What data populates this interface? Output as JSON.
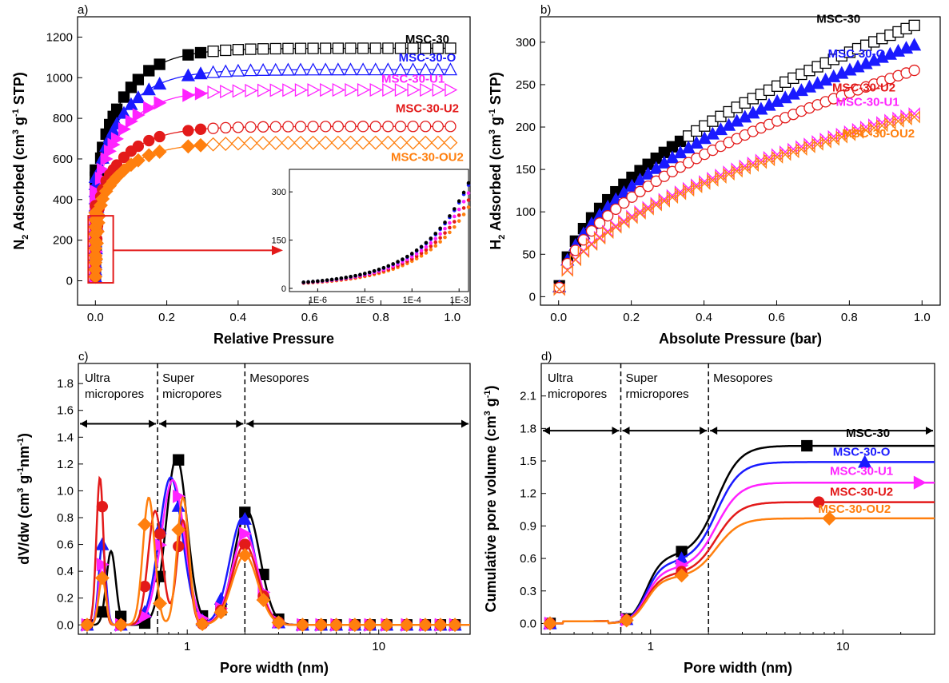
{
  "colors": {
    "MSC-30": "#000000",
    "MSC-30-O": "#1a1aff",
    "MSC-30-U1": "#ff22ff",
    "MSC-30-U2": "#e31a1a",
    "MSC-30-OU2": "#ff7f0e"
  },
  "chart_data": [
    {
      "id": "a",
      "panel_label": "a)",
      "type": "scatter",
      "xlabel": "Relative Pressure",
      "ylabel": "N2 Adsorbed (cm3 g-1 STP)",
      "ylabel_parts": [
        "N",
        "2",
        " Adsorbed (cm",
        "3",
        " g",
        "-1",
        " STP)"
      ],
      "xlim": [
        -0.05,
        1.05
      ],
      "ylim": [
        -120,
        1300
      ],
      "xticks": [
        "0.0",
        "0.2",
        "0.4",
        "0.6",
        "0.8",
        "1.0"
      ],
      "yticks": [
        "0",
        "200",
        "400",
        "600",
        "800",
        "1000",
        "1200"
      ],
      "series": [
        {
          "name": "MSC-30",
          "label_pos": [
            0.93,
            1170
          ],
          "plateau": 1145,
          "rise": 560
        },
        {
          "name": "MSC-30-O",
          "label_pos": [
            0.93,
            1080
          ],
          "plateau": 1040,
          "rise": 520
        },
        {
          "name": "MSC-30-U1",
          "label_pos": [
            0.89,
            975
          ],
          "plateau": 940,
          "rise": 470
        },
        {
          "name": "MSC-30-U2",
          "label_pos": [
            0.93,
            830
          ],
          "plateau": 760,
          "rise": 390
        },
        {
          "name": "MSC-30-OU2",
          "label_pos": [
            0.93,
            590
          ],
          "plateau": 680,
          "rise": 350
        }
      ],
      "inset": {
        "xticks": [
          "1E-6",
          "1E-5",
          "1E-4",
          "1E-3"
        ],
        "yticks": [
          "0",
          "150",
          "300"
        ],
        "xlim_log10": [
          -6.6,
          -2.8
        ],
        "ylim": [
          -10,
          370
        ]
      }
    },
    {
      "id": "b",
      "panel_label": "b)",
      "type": "scatter",
      "xlabel": "Absolute Pressure (bar)",
      "ylabel": "H2 Adsorbed (cm3 g-1 STP)",
      "ylabel_parts": [
        "H",
        "2",
        " Adsorbed (cm",
        "3",
        " g",
        "-1",
        " STP)"
      ],
      "xlim": [
        -0.05,
        1.05
      ],
      "ylim": [
        -10,
        330
      ],
      "xticks": [
        "0.0",
        "0.2",
        "0.4",
        "0.6",
        "0.8",
        "1.0"
      ],
      "yticks": [
        "0",
        "50",
        "100",
        "150",
        "200",
        "250",
        "300"
      ],
      "series": [
        {
          "name": "MSC-30",
          "end": 320,
          "label_pos": [
            0.77,
            323
          ]
        },
        {
          "name": "MSC-30-O",
          "end": 297,
          "label_pos": [
            0.82,
            282
          ]
        },
        {
          "name": "MSC-30-U2",
          "end": 267,
          "label_pos": [
            0.84,
            242
          ]
        },
        {
          "name": "MSC-30-U1",
          "end": 216,
          "label_pos": [
            0.85,
            225
          ]
        },
        {
          "name": "MSC-30-OU2",
          "end": 212,
          "label_pos": [
            0.88,
            188
          ]
        }
      ]
    },
    {
      "id": "c",
      "panel_label": "c)",
      "type": "line",
      "xscale": "log",
      "xlabel": "Pore width (nm)",
      "ylabel": "dV/dw (cm3 g-1nm-1)",
      "ylabel_parts": [
        "dV/dw (cm",
        "3",
        " g",
        "-1",
        "nm",
        "-1",
        ")"
      ],
      "xlim": [
        0.27,
        30
      ],
      "ylim": [
        -0.07,
        1.95
      ],
      "xticks": [
        {
          "v": 1,
          "label": "1"
        },
        {
          "v": 10,
          "label": "10"
        }
      ],
      "yticks": [
        "0.0",
        "0.2",
        "0.4",
        "0.6",
        "0.8",
        "1.0",
        "1.2",
        "1.4",
        "1.6",
        "1.8"
      ],
      "regions": [
        {
          "label_lines": [
            "Ultra",
            "micropores"
          ],
          "from": 0.27,
          "to": 0.7
        },
        {
          "label_lines": [
            "Super",
            "micropores"
          ],
          "from": 0.7,
          "to": 2.0
        },
        {
          "label_lines": [
            "Mesopores"
          ],
          "from": 2.0,
          "to": 30
        }
      ],
      "arrow_y": 1.5,
      "dividers": [
        0.7,
        2.0
      ],
      "series": [
        {
          "name": "MSC-30",
          "peaks": [
            [
              0.4,
              0.55,
              0.08
            ],
            [
              0.88,
              1.25,
              0.18
            ],
            [
              2.05,
              0.85,
              0.22
            ]
          ]
        },
        {
          "name": "MSC-30-O",
          "peaks": [
            [
              0.36,
              0.6,
              0.06
            ],
            [
              0.82,
              1.1,
              0.2
            ],
            [
              1.95,
              0.8,
              0.22
            ]
          ]
        },
        {
          "name": "MSC-30-U1",
          "peaks": [
            [
              0.36,
              0.45,
              0.06
            ],
            [
              0.84,
              1.08,
              0.2
            ],
            [
              2.0,
              0.68,
              0.22
            ]
          ]
        },
        {
          "name": "MSC-30-U2",
          "peaks": [
            [
              0.35,
              1.1,
              0.06
            ],
            [
              0.68,
              0.85,
              0.12
            ],
            [
              0.95,
              0.78,
              0.1
            ],
            [
              2.0,
              0.6,
              0.22
            ]
          ]
        },
        {
          "name": "MSC-30-OU2",
          "peaks": [
            [
              0.36,
              0.35,
              0.06
            ],
            [
              0.63,
              0.95,
              0.1
            ],
            [
              0.95,
              0.95,
              0.1
            ],
            [
              2.0,
              0.52,
              0.22
            ]
          ]
        }
      ]
    },
    {
      "id": "d",
      "panel_label": "d)",
      "type": "line",
      "xscale": "log",
      "xlabel": "Pore width (nm)",
      "ylabel": "Cumulative pore volume (cm3 g-1)",
      "ylabel_parts": [
        "Cumulative pore volume (cm",
        "3",
        " g",
        "-1",
        ")"
      ],
      "xlim": [
        0.27,
        30
      ],
      "ylim": [
        -0.1,
        2.4
      ],
      "xticks": [
        {
          "v": 1,
          "label": "1"
        },
        {
          "v": 10,
          "label": "10"
        }
      ],
      "yticks": [
        "0.0",
        "0.3",
        "0.6",
        "0.9",
        "1.2",
        "1.5",
        "1.8",
        "2.1"
      ],
      "regions": [
        {
          "label_lines": [
            "Ultra",
            "micropores"
          ],
          "from": 0.27,
          "to": 0.7
        },
        {
          "label_lines": [
            "Super",
            "rmicropores"
          ],
          "from": 0.7,
          "to": 2.0
        },
        {
          "label_lines": [
            "Mesopores"
          ],
          "from": 2.0,
          "to": 30
        }
      ],
      "arrow_y": 1.78,
      "dividers": [
        0.7,
        2.0
      ],
      "series": [
        {
          "name": "MSC-30",
          "plateau": 1.64,
          "mid": 0.62,
          "label_pos": [
            13.5,
            1.72
          ]
        },
        {
          "name": "MSC-30-O",
          "plateau": 1.49,
          "mid": 0.56,
          "label_pos": [
            12.5,
            1.55
          ]
        },
        {
          "name": "MSC-30-U1",
          "plateau": 1.3,
          "mid": 0.5,
          "label_pos": [
            12.5,
            1.37
          ]
        },
        {
          "name": "MSC-30-U2",
          "plateau": 1.12,
          "mid": 0.45,
          "label_pos": [
            12.5,
            1.18
          ]
        },
        {
          "name": "MSC-30-OU2",
          "plateau": 0.97,
          "mid": 0.42,
          "label_pos": [
            11.5,
            1.02
          ]
        }
      ]
    }
  ]
}
